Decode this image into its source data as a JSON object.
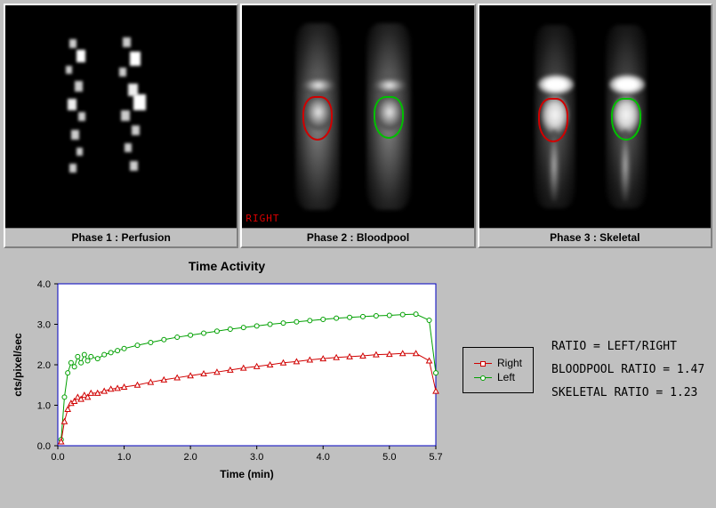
{
  "panels": {
    "p1": {
      "label": "Phase 1 : Perfusion"
    },
    "p2": {
      "label": "Phase 2 : Bloodpool",
      "right_text": "RIGHT"
    },
    "p3": {
      "label": "Phase 3 : Skeletal"
    }
  },
  "roi_colors": {
    "right": "#d00000",
    "left": "#00c000"
  },
  "chart": {
    "title": "Time Activity",
    "xlabel": "Time (min)",
    "ylabel": "cts/pixel/sec",
    "xlim": [
      0.0,
      5.7
    ],
    "ylim": [
      0.0,
      4.0
    ],
    "xticks": [
      0.0,
      1.0,
      2.0,
      3.0,
      4.0,
      5.0,
      5.7
    ],
    "yticks": [
      0.0,
      1.0,
      2.0,
      3.0,
      4.0
    ],
    "series": {
      "right": {
        "label": "Right",
        "color": "#d00000",
        "marker": "triangle",
        "x": [
          0.05,
          0.1,
          0.15,
          0.2,
          0.25,
          0.3,
          0.35,
          0.4,
          0.45,
          0.5,
          0.6,
          0.7,
          0.8,
          0.9,
          1.0,
          1.2,
          1.4,
          1.6,
          1.8,
          2.0,
          2.2,
          2.4,
          2.6,
          2.8,
          3.0,
          3.2,
          3.4,
          3.6,
          3.8,
          4.0,
          4.2,
          4.4,
          4.6,
          4.8,
          5.0,
          5.2,
          5.4,
          5.6,
          5.7
        ],
        "y": [
          0.1,
          0.6,
          0.9,
          1.05,
          1.1,
          1.2,
          1.15,
          1.25,
          1.2,
          1.3,
          1.3,
          1.35,
          1.4,
          1.42,
          1.45,
          1.5,
          1.57,
          1.63,
          1.68,
          1.73,
          1.78,
          1.82,
          1.87,
          1.92,
          1.96,
          2.0,
          2.05,
          2.08,
          2.12,
          2.15,
          2.18,
          2.2,
          2.22,
          2.25,
          2.26,
          2.28,
          2.28,
          2.1,
          1.35
        ]
      },
      "left": {
        "label": "Left",
        "color": "#00a000",
        "marker": "circle",
        "x": [
          0.05,
          0.1,
          0.15,
          0.2,
          0.25,
          0.3,
          0.35,
          0.4,
          0.45,
          0.5,
          0.6,
          0.7,
          0.8,
          0.9,
          1.0,
          1.2,
          1.4,
          1.6,
          1.8,
          2.0,
          2.2,
          2.4,
          2.6,
          2.8,
          3.0,
          3.2,
          3.4,
          3.6,
          3.8,
          4.0,
          4.2,
          4.4,
          4.6,
          4.8,
          5.0,
          5.2,
          5.4,
          5.6,
          5.7
        ],
        "y": [
          0.15,
          1.2,
          1.8,
          2.05,
          1.95,
          2.2,
          2.05,
          2.25,
          2.1,
          2.2,
          2.15,
          2.25,
          2.3,
          2.35,
          2.4,
          2.48,
          2.55,
          2.62,
          2.68,
          2.73,
          2.78,
          2.83,
          2.88,
          2.92,
          2.96,
          3.0,
          3.03,
          3.06,
          3.09,
          3.12,
          3.15,
          3.17,
          3.19,
          3.21,
          3.22,
          3.24,
          3.25,
          3.1,
          1.8
        ]
      }
    },
    "grid_color": "#000000",
    "plot_bg": "#ffffff",
    "plot_border": "#0000c0",
    "tick_font_size": 11
  },
  "legend": {
    "right": "Right",
    "left": "Left"
  },
  "ratios": {
    "title": "RATIO = LEFT/RIGHT",
    "bloodpool_label": "BLOODPOOL RATIO = ",
    "bloodpool_val": "1.47",
    "skeletal_label": "SKELETAL  RATIO = ",
    "skeletal_val": "1.23"
  }
}
